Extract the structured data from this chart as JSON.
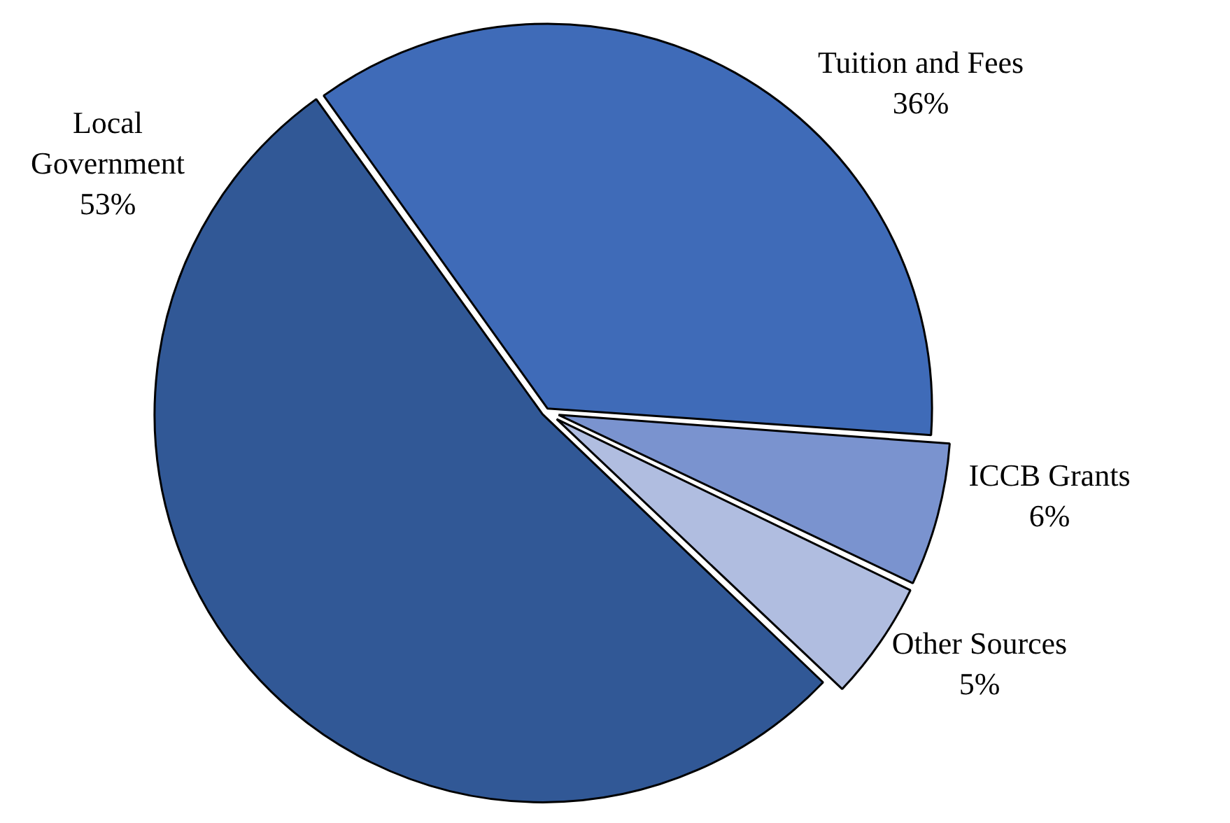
{
  "chart_data": {
    "type": "pie",
    "categories": [
      "Tuition and Fees",
      "ICCB Grants",
      "Other Sources",
      "Local Government"
    ],
    "values": [
      36,
      6,
      5,
      53
    ],
    "colors": [
      "#3f6bb8",
      "#7a93cf",
      "#b0bde0",
      "#315896"
    ],
    "value_labels": [
      "36%",
      "6%",
      "5%",
      "53%"
    ],
    "legend": false
  }
}
